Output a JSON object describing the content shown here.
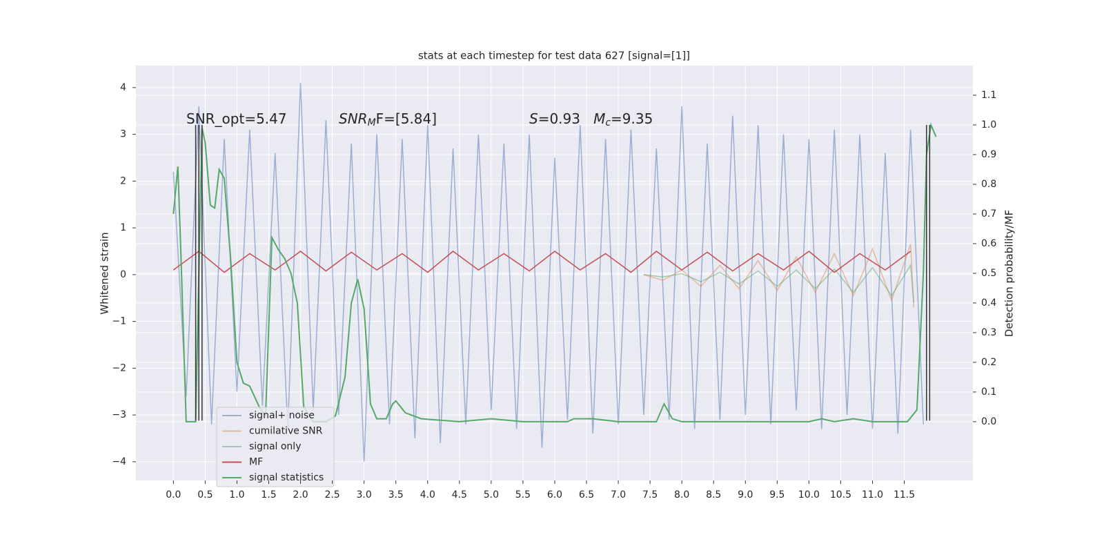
{
  "chart_data": {
    "type": "line",
    "title": "stats at each timestep for test data 627 [signal=[1]]",
    "ylabel": "Whitened strain",
    "y2label": "Detection probability/MF",
    "annotations": [
      [
        "SNR_opt=5.47"
      ],
      [
        "SNR",
        "M",
        "F=[5.84]"
      ],
      [
        "S",
        "=0.93   ",
        "M",
        "c",
        "=9.35"
      ]
    ],
    "xlim": [
      -0.59,
      12.58
    ],
    "ylim": [
      -4.4,
      4.47
    ],
    "y2lim": [
      -0.198,
      1.2
    ],
    "grid": true,
    "legend": "lower left",
    "xticks": [
      {
        "value": 0,
        "label": "0.0"
      },
      {
        "value": 0.5,
        "label": "0.5"
      },
      {
        "value": 1,
        "label": "1.0"
      },
      {
        "value": 1.5,
        "label": "1.5"
      },
      {
        "value": 2,
        "label": "2.0"
      },
      {
        "value": 2.5,
        "label": "2.5"
      },
      {
        "value": 3,
        "label": "3.0"
      },
      {
        "value": 3.5,
        "label": "3.5"
      },
      {
        "value": 4,
        "label": "4.0"
      },
      {
        "value": 4.5,
        "label": "4.5"
      },
      {
        "value": 5,
        "label": "5.0"
      },
      {
        "value": 5.5,
        "label": "5.5"
      },
      {
        "value": 6,
        "label": "6.0"
      },
      {
        "value": 6.5,
        "label": "6.5"
      },
      {
        "value": 7,
        "label": "7.0"
      },
      {
        "value": 7.5,
        "label": "7.5"
      },
      {
        "value": 8,
        "label": "8.0"
      },
      {
        "value": 8.5,
        "label": "8.5"
      },
      {
        "value": 9,
        "label": "9.0"
      },
      {
        "value": 9.5,
        "label": "9.5"
      },
      {
        "value": 10,
        "label": "10.0"
      },
      {
        "value": 10.5,
        "label": "10.5"
      },
      {
        "value": 11,
        "label": "11.0"
      },
      {
        "value": 11.5,
        "label": "11.5"
      }
    ],
    "yticks": [
      {
        "value": -4,
        "label": "−4"
      },
      {
        "value": -3,
        "label": "−3"
      },
      {
        "value": -2,
        "label": "−2"
      },
      {
        "value": -1,
        "label": "−1"
      },
      0,
      1,
      2,
      3,
      4
    ],
    "y2ticks": [
      {
        "value": 0,
        "label": "0.0"
      },
      {
        "value": 0.1,
        "label": "0.1"
      },
      {
        "value": 0.2,
        "label": "0.2"
      },
      {
        "value": 0.3,
        "label": "0.3"
      },
      {
        "value": 0.4,
        "label": "0.4"
      },
      {
        "value": 0.5,
        "label": "0.5"
      },
      {
        "value": 0.6,
        "label": "0.6"
      },
      {
        "value": 0.7,
        "label": "0.7"
      },
      {
        "value": 0.8,
        "label": "0.8"
      },
      {
        "value": 0.9,
        "label": "0.9"
      },
      {
        "value": 1.0,
        "label": "1.0"
      },
      {
        "value": 1.1,
        "label": "1.1"
      }
    ],
    "vlines": {
      "x": [
        0.35,
        0.4,
        0.45,
        11.85,
        11.9
      ],
      "ymin": -3.12,
      "ymax": 3.2,
      "color": "#333333"
    },
    "series": [
      {
        "name": "signal+ noise",
        "color": "#4c72b0",
        "opacity": 0.5,
        "x": [
          0,
          0.2,
          0.4,
          0.6,
          0.8,
          1,
          1.2,
          1.4,
          1.6,
          1.8,
          2,
          2.2,
          2.4,
          2.6,
          2.8,
          3,
          3.2,
          3.4,
          3.6,
          3.8,
          4,
          4.2,
          4.4,
          4.6,
          4.8,
          5,
          5.2,
          5.4,
          5.6,
          5.8,
          6,
          6.2,
          6.4,
          6.6,
          6.8,
          7,
          7.2,
          7.4,
          7.6,
          7.8,
          8,
          8.2,
          8.4,
          8.6,
          8.8,
          9,
          9.2,
          9.4,
          9.6,
          9.8,
          10,
          10.2,
          10.4,
          10.6,
          10.8,
          11,
          11.2,
          11.4,
          11.6,
          11.8
        ],
        "values": [
          2.2,
          -2.6,
          3.6,
          -3.2,
          2.9,
          -2.5,
          3.1,
          -2.8,
          2.6,
          -3.3,
          4.1,
          -2.9,
          3.3,
          -3.0,
          2.8,
          -4.0,
          3.0,
          -3.2,
          2.9,
          -3.5,
          3.2,
          -3.6,
          2.7,
          -3.2,
          3.0,
          -2.9,
          2.8,
          -3.3,
          3.0,
          -3.7,
          2.5,
          -3.1,
          3.2,
          -3.4,
          2.9,
          -3.2,
          3.1,
          -3.0,
          2.7,
          -3.1,
          3.6,
          -3.3,
          2.8,
          -3.1,
          3.4,
          -3.0,
          3.2,
          -3.2,
          3.0,
          -2.9,
          2.9,
          -3.3,
          3.1,
          -3.0,
          3.0,
          -3.3,
          2.6,
          -3.4,
          3.1,
          -3.2
        ]
      },
      {
        "name": "cumilative SNR",
        "color": "#dd8452",
        "opacity": 0.5,
        "x": [
          7.4,
          7.7,
          8.0,
          8.3,
          8.6,
          8.9,
          9.2,
          9.5,
          9.8,
          10.1,
          10.4,
          10.7,
          11.0,
          11.3,
          11.6,
          11.65
        ],
        "values": [
          0,
          -0.12,
          0.1,
          -0.25,
          0.2,
          -0.3,
          0.3,
          -0.34,
          0.38,
          -0.38,
          0.45,
          -0.45,
          0.55,
          -0.55,
          0.65,
          -0.7
        ]
      },
      {
        "name": "signal only",
        "color": "#55a868",
        "opacity": 0.5,
        "x": [
          7.4,
          7.7,
          8.0,
          8.3,
          8.6,
          8.9,
          9.2,
          9.5,
          9.8,
          10.1,
          10.4,
          10.7,
          11.0,
          11.3,
          11.6,
          11.65
        ],
        "values": [
          0,
          -0.05,
          0.02,
          -0.15,
          0.05,
          -0.2,
          0.08,
          -0.25,
          0.1,
          -0.3,
          0.12,
          -0.38,
          0.15,
          -0.45,
          0.2,
          -0.6
        ]
      },
      {
        "name": "MF",
        "color": "#c44e52",
        "opacity": 1,
        "x": [
          0,
          0.4,
          0.8,
          1.2,
          1.6,
          2.0,
          2.4,
          2.8,
          3.2,
          3.6,
          4.0,
          4.4,
          4.8,
          5.2,
          5.6,
          6.0,
          6.4,
          6.8,
          7.2,
          7.6,
          8.0,
          8.4,
          8.8,
          9.2,
          9.6,
          10.0,
          10.4,
          10.8,
          11.2,
          11.6
        ],
        "values": [
          0.1,
          0.5,
          0.05,
          0.45,
          0.1,
          0.5,
          0.08,
          0.48,
          0.1,
          0.45,
          0.05,
          0.5,
          0.1,
          0.45,
          0.08,
          0.5,
          0.1,
          0.45,
          0.05,
          0.5,
          0.1,
          0.48,
          0.08,
          0.45,
          0.1,
          0.5,
          0.05,
          0.45,
          0.1,
          0.5
        ]
      },
      {
        "name": "signal statistics",
        "color": "#55a868",
        "opacity": 1,
        "axis": "y2",
        "x": [
          0,
          0.07,
          0.12,
          0.2,
          0.3,
          0.35,
          0.45,
          0.5,
          0.58,
          0.65,
          0.72,
          0.8,
          0.9,
          1.0,
          1.1,
          1.2,
          1.35,
          1.45,
          1.55,
          1.65,
          1.75,
          1.85,
          1.95,
          2.05,
          2.2,
          2.4,
          2.55,
          2.7,
          2.8,
          2.9,
          3.0,
          3.1,
          3.2,
          3.35,
          3.45,
          3.5,
          3.65,
          3.9,
          4.5,
          5.0,
          5.5,
          6.2,
          6.3,
          6.6,
          7.0,
          7.6,
          7.72,
          7.85,
          8.0,
          9.5,
          10.0,
          10.2,
          10.4,
          10.7,
          11.0,
          11.55,
          11.7,
          11.8,
          11.85,
          11.92,
          12.0
        ],
        "values": [
          0.7,
          0.86,
          0.55,
          0.0,
          0.0,
          0.0,
          0.99,
          0.94,
          0.73,
          0.72,
          0.85,
          0.82,
          0.55,
          0.2,
          0.13,
          0.12,
          0.05,
          0.02,
          0.62,
          0.58,
          0.55,
          0.5,
          0.4,
          0.05,
          0.0,
          0.0,
          0.02,
          0.15,
          0.4,
          0.48,
          0.38,
          0.06,
          0.01,
          0.01,
          0.06,
          0.07,
          0.03,
          0.01,
          0.0,
          0.01,
          0.0,
          0.0,
          0.01,
          0.01,
          0.0,
          0.0,
          0.06,
          0.01,
          0.0,
          0.0,
          0.0,
          0.01,
          0.0,
          0.01,
          0.0,
          0.0,
          0.04,
          0.5,
          0.9,
          1.0,
          0.96
        ]
      }
    ]
  }
}
